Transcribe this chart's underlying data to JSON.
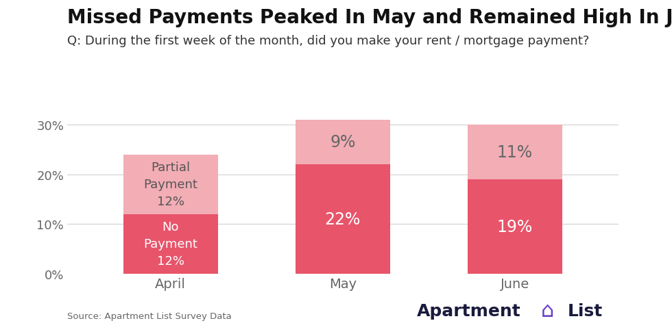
{
  "title": "Missed Payments Peaked In May and Remained High In June",
  "subtitle": "Q: During the first week of the month, did you make your rent / mortgage payment?",
  "categories": [
    "April",
    "May",
    "June"
  ],
  "no_payment": [
    12,
    22,
    19
  ],
  "partial_payment": [
    12,
    9,
    11
  ],
  "no_payment_color": "#E8546A",
  "partial_payment_color": "#F2ADB5",
  "bar_width": 0.55,
  "ylim": [
    0,
    35
  ],
  "yticks": [
    0,
    10,
    20,
    30
  ],
  "ytick_labels": [
    "0%",
    "10%",
    "20%",
    "30%"
  ],
  "background_color": "#ffffff",
  "title_fontsize": 20,
  "subtitle_fontsize": 13,
  "source_text": "Source: Apartment List Survey Data",
  "grid_color": "#d0d0d0",
  "tick_label_fontsize": 13,
  "bar_label_fontsize_small": 13,
  "bar_label_fontsize_large": 17,
  "bar_label_color_white": "#ffffff",
  "bar_label_color_dark": "#555555",
  "logo_text_color": "#1a1a3e",
  "logo_icon_color": "#6a3fc8"
}
